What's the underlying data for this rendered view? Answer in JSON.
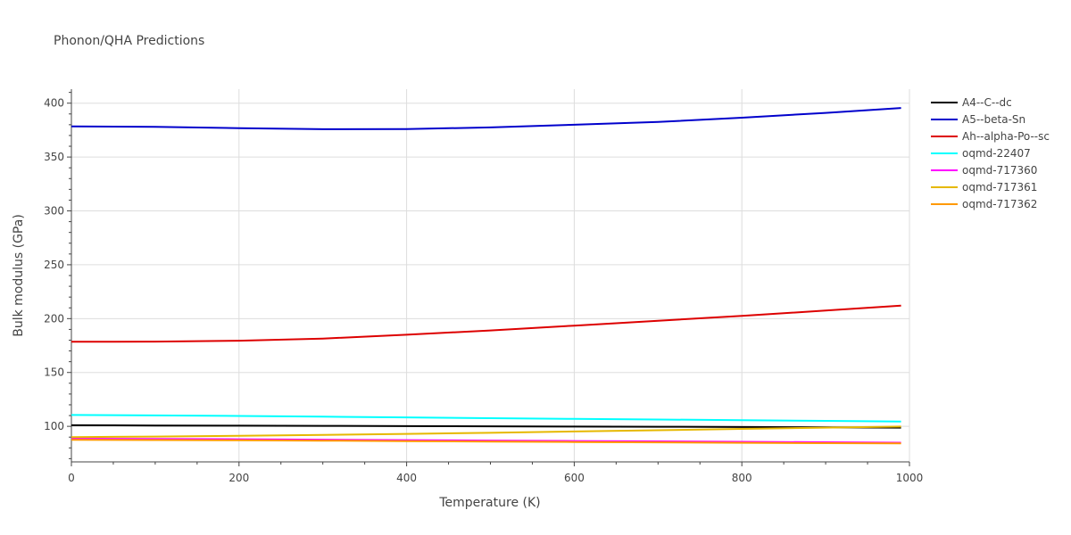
{
  "chart_data": {
    "type": "line",
    "title": "Phonon/QHA Predictions",
    "xlabel": "Temperature (K)",
    "ylabel": "Bulk modulus (GPa)",
    "xlim": [
      0,
      1000
    ],
    "ylim": [
      67,
      413
    ],
    "xticks": [
      0,
      200,
      400,
      600,
      800,
      1000
    ],
    "yticks": [
      100,
      150,
      200,
      250,
      300,
      350,
      400
    ],
    "grid": true,
    "legend_position": "top-right",
    "series": [
      {
        "name": "A4--C--dc",
        "color": "#000000",
        "x": [
          0,
          100,
          200,
          300,
          400,
          500,
          600,
          700,
          800,
          900,
          990
        ],
        "y": [
          101,
          100.8,
          100.6,
          100.4,
          100.2,
          100,
          99.8,
          99.6,
          99.4,
          99.1,
          98.8
        ]
      },
      {
        "name": "A5--beta-Sn",
        "color": "#0000cc",
        "x": [
          0,
          100,
          200,
          300,
          400,
          500,
          600,
          700,
          800,
          900,
          990
        ],
        "y": [
          378.5,
          378,
          376.8,
          375.8,
          376,
          377.5,
          380,
          382.5,
          386.5,
          391,
          395.5
        ]
      },
      {
        "name": "Ah--alpha-Po--sc",
        "color": "#dd0000",
        "x": [
          0,
          100,
          200,
          300,
          400,
          500,
          600,
          700,
          800,
          900,
          990
        ],
        "y": [
          178.5,
          178.7,
          179.5,
          181.5,
          185,
          189,
          193.5,
          198,
          202.5,
          207.5,
          212
        ]
      },
      {
        "name": "oqmd-22407",
        "color": "#00ffff",
        "x": [
          0,
          100,
          200,
          300,
          400,
          500,
          600,
          700,
          800,
          900,
          990
        ],
        "y": [
          110.5,
          110.1,
          109.6,
          109,
          108.3,
          107.6,
          106.9,
          106.3,
          105.7,
          105.1,
          104.5
        ]
      },
      {
        "name": "oqmd-717360",
        "color": "#ff00ff",
        "x": [
          0,
          100,
          200,
          300,
          400,
          500,
          600,
          700,
          800,
          900,
          990
        ],
        "y": [
          88.5,
          88.3,
          88,
          87.6,
          87.2,
          86.8,
          86.4,
          86,
          85.6,
          85.2,
          84.8
        ]
      },
      {
        "name": "oqmd-717361",
        "color": "#e6b800",
        "x": [
          0,
          100,
          200,
          300,
          400,
          500,
          600,
          700,
          800,
          900,
          990
        ],
        "y": [
          90,
          90.5,
          91.2,
          92,
          93,
          94,
          95.2,
          96.4,
          97.6,
          98.8,
          99.8
        ]
      },
      {
        "name": "oqmd-717362",
        "color": "#ff9900",
        "x": [
          0,
          100,
          200,
          300,
          400,
          500,
          600,
          700,
          800,
          900,
          990
        ],
        "y": [
          87.5,
          87.3,
          87,
          86.7,
          86.3,
          85.9,
          85.5,
          85.1,
          84.7,
          84.4,
          84.1
        ]
      }
    ]
  }
}
